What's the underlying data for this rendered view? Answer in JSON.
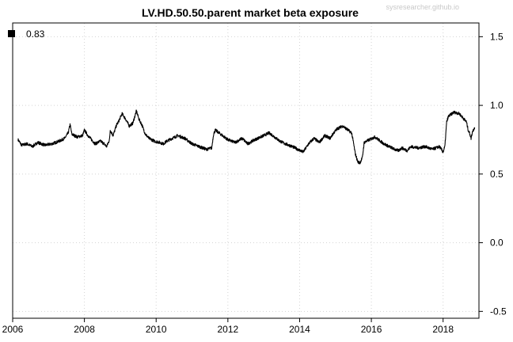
{
  "chart_data": {
    "type": "line",
    "title": "LV.HD.50.50.parent market beta exposure",
    "watermark": "sysresearcher.github.io",
    "xlabel": "",
    "ylabel": "",
    "xlim": [
      2006.0,
      2019.0
    ],
    "ylim": [
      -0.55,
      1.6
    ],
    "x_ticks": [
      2006,
      2008,
      2010,
      2012,
      2014,
      2016,
      2018
    ],
    "x_tick_labels": [
      "2006",
      "2008",
      "2010",
      "2012",
      "2014",
      "2016",
      "2018"
    ],
    "y_ticks": [
      -0.5,
      0.0,
      0.5,
      1.0,
      1.5
    ],
    "y_tick_labels": [
      "-0.5",
      "0.0",
      "0.5",
      "1.0",
      "1.5"
    ],
    "y_axis_side": "right",
    "grid": true,
    "legend": {
      "placement": "top-left",
      "entries": [
        {
          "label": "0.83",
          "color": "#000000"
        }
      ]
    },
    "series": [
      {
        "color": "#000000",
        "points": [
          [
            2006.15,
            0.75
          ],
          [
            2006.25,
            0.71
          ],
          [
            2006.4,
            0.72
          ],
          [
            2006.55,
            0.7
          ],
          [
            2006.7,
            0.73
          ],
          [
            2006.9,
            0.71
          ],
          [
            2007.1,
            0.72
          ],
          [
            2007.3,
            0.74
          ],
          [
            2007.45,
            0.76
          ],
          [
            2007.55,
            0.8
          ],
          [
            2007.6,
            0.86
          ],
          [
            2007.65,
            0.79
          ],
          [
            2007.8,
            0.77
          ],
          [
            2007.95,
            0.78
          ],
          [
            2008.0,
            0.82
          ],
          [
            2008.1,
            0.78
          ],
          [
            2008.2,
            0.75
          ],
          [
            2008.3,
            0.72
          ],
          [
            2008.45,
            0.74
          ],
          [
            2008.55,
            0.72
          ],
          [
            2008.62,
            0.7
          ],
          [
            2008.7,
            0.75
          ],
          [
            2008.72,
            0.82
          ],
          [
            2008.8,
            0.78
          ],
          [
            2008.9,
            0.86
          ],
          [
            2008.95,
            0.88
          ],
          [
            2009.05,
            0.94
          ],
          [
            2009.15,
            0.9
          ],
          [
            2009.25,
            0.85
          ],
          [
            2009.35,
            0.87
          ],
          [
            2009.45,
            0.96
          ],
          [
            2009.52,
            0.9
          ],
          [
            2009.6,
            0.86
          ],
          [
            2009.7,
            0.79
          ],
          [
            2009.8,
            0.76
          ],
          [
            2009.95,
            0.74
          ],
          [
            2010.1,
            0.73
          ],
          [
            2010.2,
            0.72
          ],
          [
            2010.3,
            0.74
          ],
          [
            2010.45,
            0.76
          ],
          [
            2010.6,
            0.78
          ],
          [
            2010.8,
            0.76
          ],
          [
            2011.0,
            0.72
          ],
          [
            2011.2,
            0.7
          ],
          [
            2011.4,
            0.68
          ],
          [
            2011.55,
            0.69
          ],
          [
            2011.6,
            0.79
          ],
          [
            2011.65,
            0.82
          ],
          [
            2011.8,
            0.79
          ],
          [
            2012.0,
            0.75
          ],
          [
            2012.2,
            0.73
          ],
          [
            2012.4,
            0.76
          ],
          [
            2012.55,
            0.72
          ],
          [
            2012.75,
            0.75
          ],
          [
            2013.0,
            0.78
          ],
          [
            2013.15,
            0.8
          ],
          [
            2013.3,
            0.77
          ],
          [
            2013.45,
            0.74
          ],
          [
            2013.6,
            0.72
          ],
          [
            2013.8,
            0.7
          ],
          [
            2013.95,
            0.68
          ],
          [
            2014.1,
            0.66
          ],
          [
            2014.25,
            0.72
          ],
          [
            2014.4,
            0.76
          ],
          [
            2014.55,
            0.73
          ],
          [
            2014.7,
            0.78
          ],
          [
            2014.85,
            0.76
          ],
          [
            2014.95,
            0.8
          ],
          [
            2015.05,
            0.83
          ],
          [
            2015.2,
            0.85
          ],
          [
            2015.35,
            0.82
          ],
          [
            2015.45,
            0.8
          ],
          [
            2015.5,
            0.73
          ],
          [
            2015.55,
            0.65
          ],
          [
            2015.62,
            0.59
          ],
          [
            2015.68,
            0.58
          ],
          [
            2015.75,
            0.62
          ],
          [
            2015.8,
            0.73
          ],
          [
            2015.95,
            0.75
          ],
          [
            2016.1,
            0.77
          ],
          [
            2016.2,
            0.75
          ],
          [
            2016.35,
            0.72
          ],
          [
            2016.5,
            0.7
          ],
          [
            2016.65,
            0.68
          ],
          [
            2016.75,
            0.67
          ],
          [
            2016.85,
            0.69
          ],
          [
            2017.0,
            0.67
          ],
          [
            2017.1,
            0.7
          ],
          [
            2017.3,
            0.69
          ],
          [
            2017.5,
            0.7
          ],
          [
            2017.7,
            0.68
          ],
          [
            2017.9,
            0.7
          ],
          [
            2018.0,
            0.66
          ],
          [
            2018.05,
            0.7
          ],
          [
            2018.1,
            0.88
          ],
          [
            2018.15,
            0.92
          ],
          [
            2018.3,
            0.95
          ],
          [
            2018.45,
            0.94
          ],
          [
            2018.55,
            0.91
          ],
          [
            2018.65,
            0.88
          ],
          [
            2018.7,
            0.82
          ],
          [
            2018.75,
            0.79
          ],
          [
            2018.78,
            0.76
          ],
          [
            2018.82,
            0.81
          ],
          [
            2018.88,
            0.84
          ]
        ]
      }
    ]
  }
}
